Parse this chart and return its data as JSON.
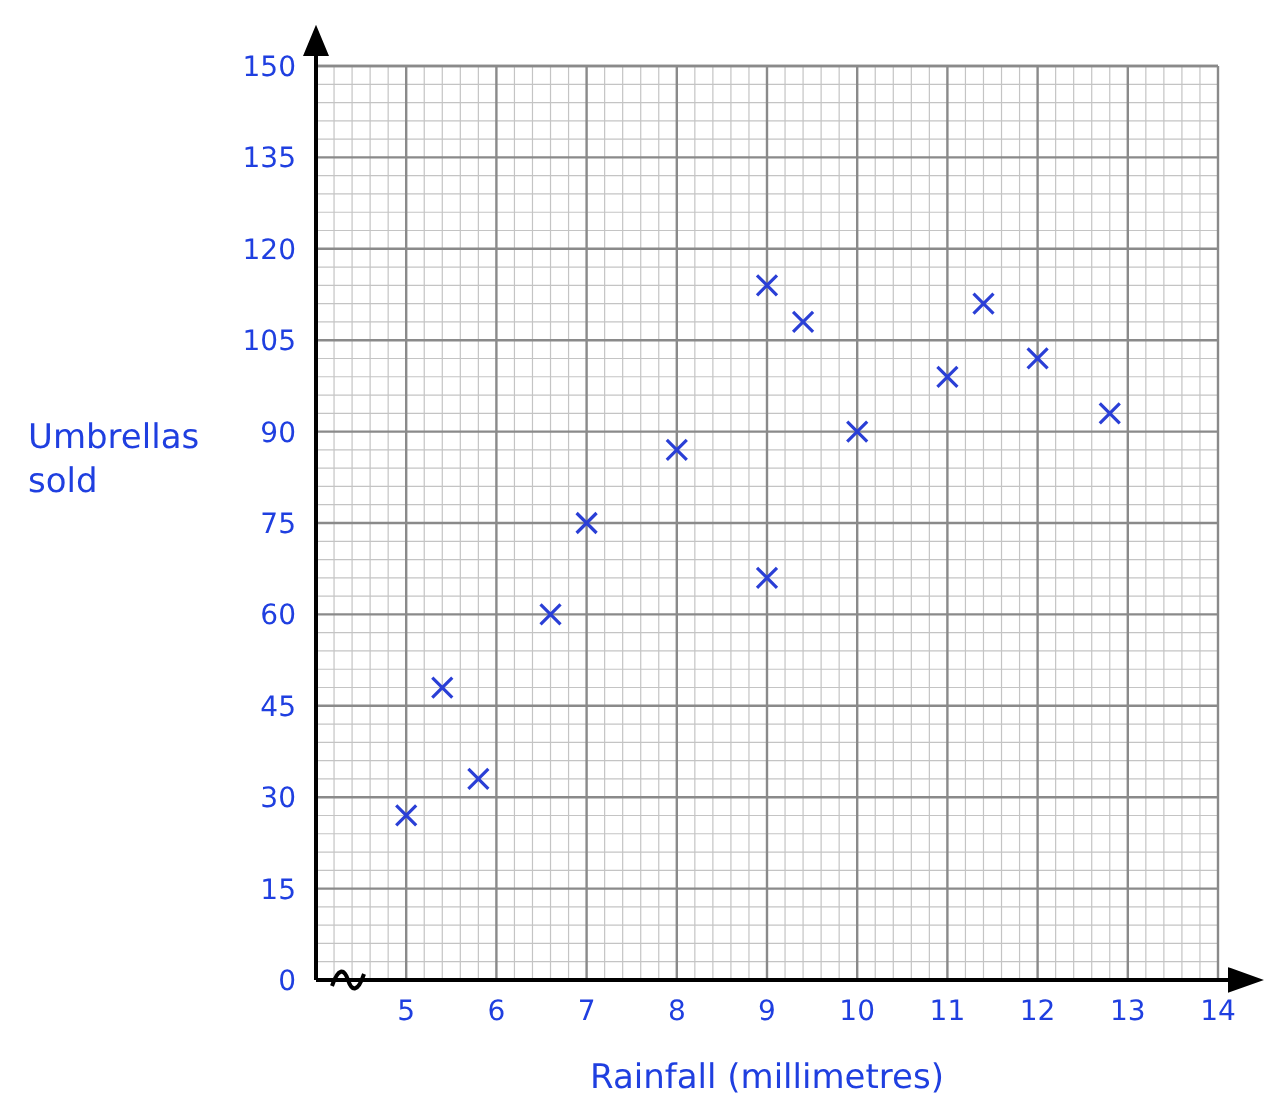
{
  "chart_data": {
    "type": "scatter",
    "xlabel": "Rainfall (millimetres)",
    "ylabel": "Umbrellas\nsold",
    "xlim": [
      4,
      14
    ],
    "xticks": [
      5,
      6,
      7,
      8,
      9,
      10,
      11,
      12,
      13,
      14
    ],
    "ylim": [
      0,
      150
    ],
    "yticks": [
      0,
      15,
      30,
      45,
      60,
      75,
      90,
      105,
      120,
      135,
      150
    ],
    "grid": true,
    "marker": "cross",
    "series": [
      {
        "color": "#2a3fd6",
        "x": [
          5,
          5.4,
          5.8,
          6.6,
          7,
          8,
          9,
          9,
          9.4,
          10,
          11,
          11.4,
          12,
          12.8
        ],
        "values": [
          27,
          48,
          33,
          60,
          75,
          87,
          114,
          66,
          108,
          90,
          99,
          111,
          102,
          93
        ]
      }
    ]
  }
}
